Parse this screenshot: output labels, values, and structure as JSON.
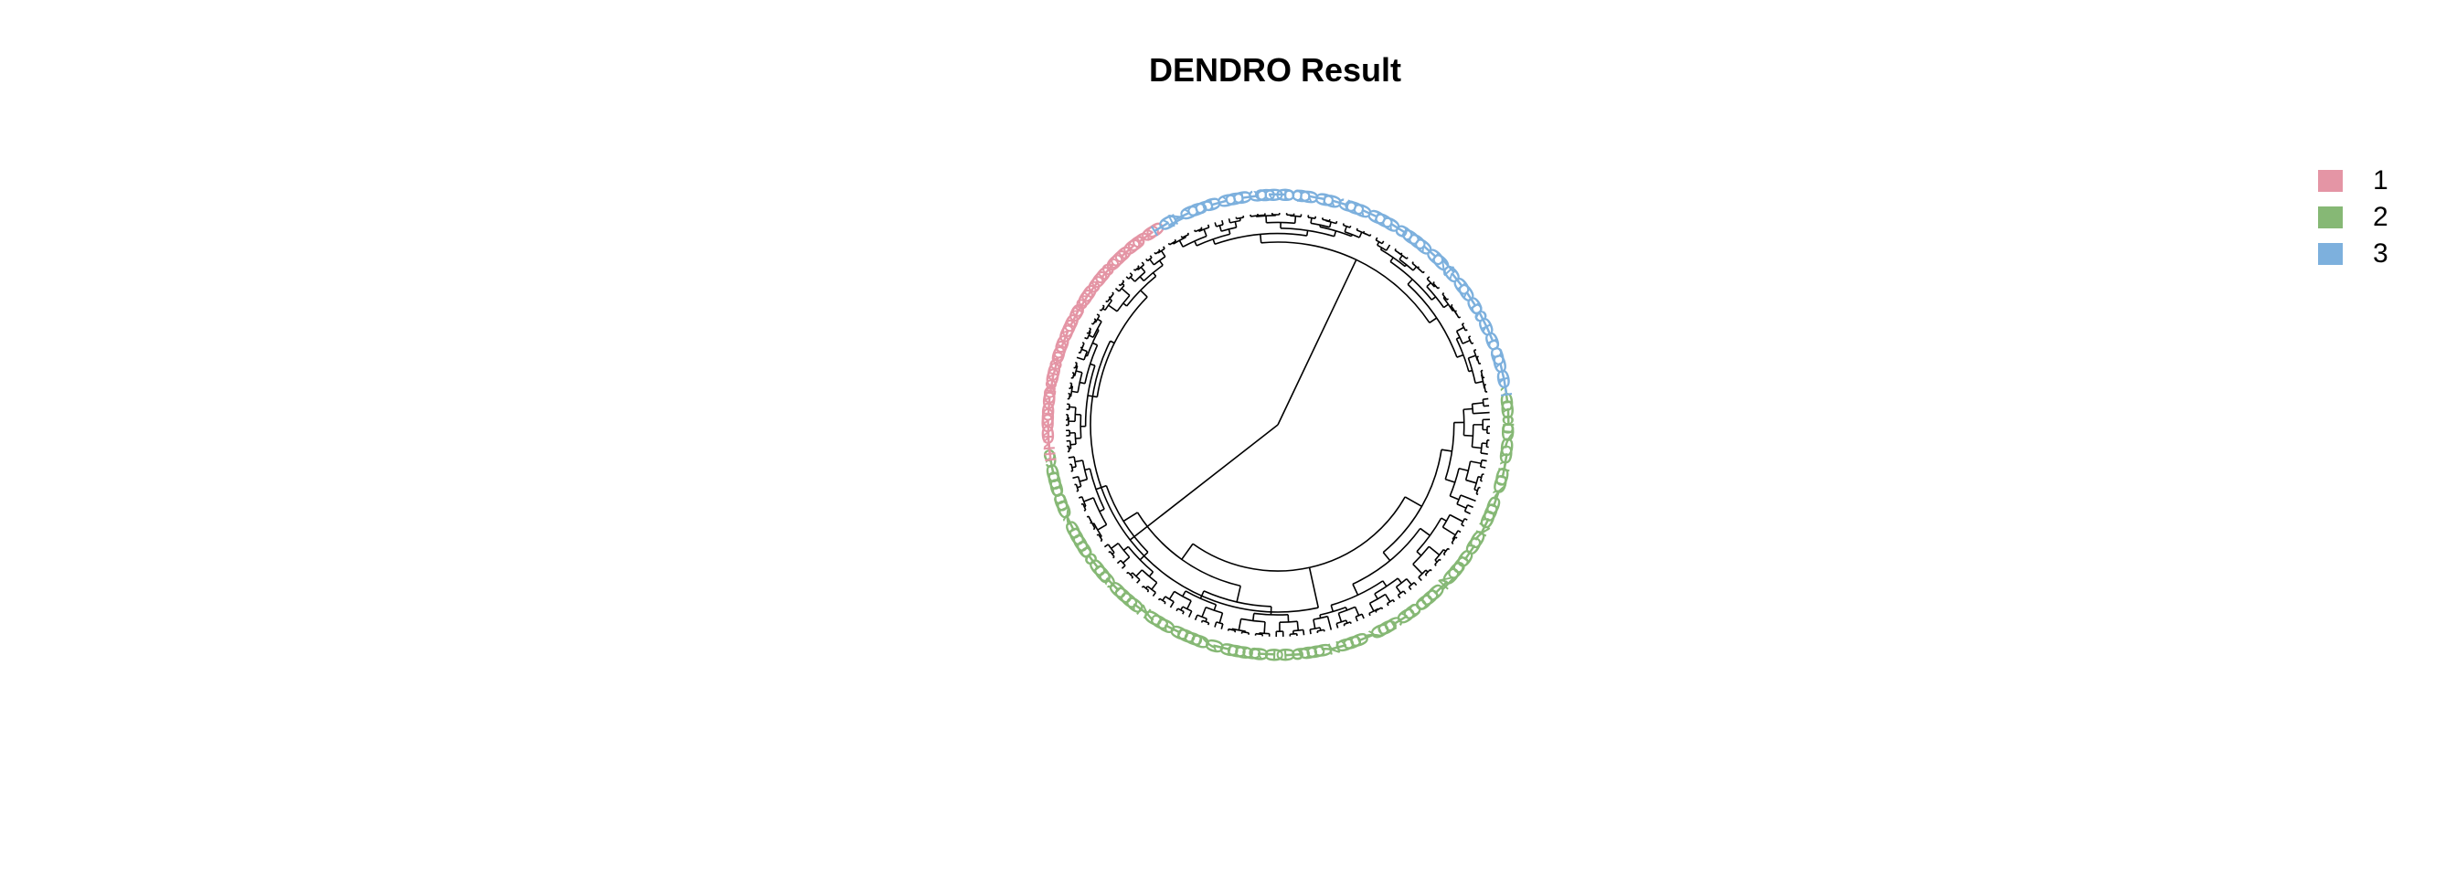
{
  "chart_data": {
    "type": "dendrogram",
    "layout": "circular",
    "title": "DENDRO Result",
    "legend_position": "top-right",
    "groups": [
      {
        "name": "1",
        "color": "#E495A5"
      },
      {
        "name": "2",
        "color": "#86B875"
      },
      {
        "name": "3",
        "color": "#7DB0DD"
      }
    ],
    "leaf_label_glyphs": {
      "1": [
        "1",
        "1",
        "1",
        "0",
        "1",
        "0",
        "0",
        "0",
        "1",
        "0",
        "6",
        "8",
        "1",
        "0",
        "0",
        "1",
        "8",
        "0",
        "9",
        "0",
        "1",
        "0",
        "0",
        "0",
        "1",
        "0",
        "8",
        "1",
        "0",
        "0",
        "1",
        "6",
        "0",
        "0",
        "1",
        "8",
        "0",
        "0",
        "0",
        "1",
        "0",
        "0",
        "6",
        "1",
        "0",
        "0"
      ],
      "2": [
        "1",
        "0",
        "0",
        "1",
        "8",
        "0",
        "7",
        "0",
        "0",
        "1",
        "1",
        "0",
        "0",
        "7",
        "1",
        "0",
        "0",
        "0",
        "1",
        "7",
        "0",
        "0",
        "1",
        "0",
        "6",
        "0",
        "0",
        "4",
        "1",
        "0",
        "0",
        "0",
        "8",
        "0",
        "0",
        "1",
        "6",
        "0",
        "0",
        "7",
        "1",
        "0",
        "0",
        "0",
        "1",
        "7",
        "0",
        "0",
        "0",
        "6",
        "1",
        "0",
        "0",
        "1",
        "0",
        "6",
        "0",
        "0",
        "0",
        "1",
        "0",
        "7",
        "0",
        "0",
        "0",
        "0",
        "1",
        "0",
        "0",
        "0",
        "7",
        "1",
        "0",
        "0",
        "0",
        "0",
        "1",
        "9",
        "0",
        "0",
        "1",
        "8",
        "0",
        "0",
        "0",
        "0",
        "1",
        "7",
        "0",
        "0",
        "8",
        "0",
        "0",
        "0",
        "1",
        "9"
      ],
      "3": [
        "1",
        "0",
        "4",
        "1",
        "0",
        "0",
        "6",
        "0",
        "1",
        "0",
        "0",
        "0",
        "1",
        "9",
        "0",
        "0",
        "1",
        "0",
        "3",
        "0",
        "0",
        "1",
        "0",
        "0",
        "1",
        "6",
        "0",
        "0",
        "1",
        "0",
        "0",
        "0",
        "1",
        "9",
        "0",
        "0",
        "0",
        "1",
        "0",
        "0",
        "4",
        "0",
        "1",
        "0",
        "0",
        "1",
        "0",
        "8",
        "1",
        "0",
        "1",
        "0",
        "3",
        "0",
        "0",
        "1",
        "0",
        "1"
      ]
    }
  }
}
